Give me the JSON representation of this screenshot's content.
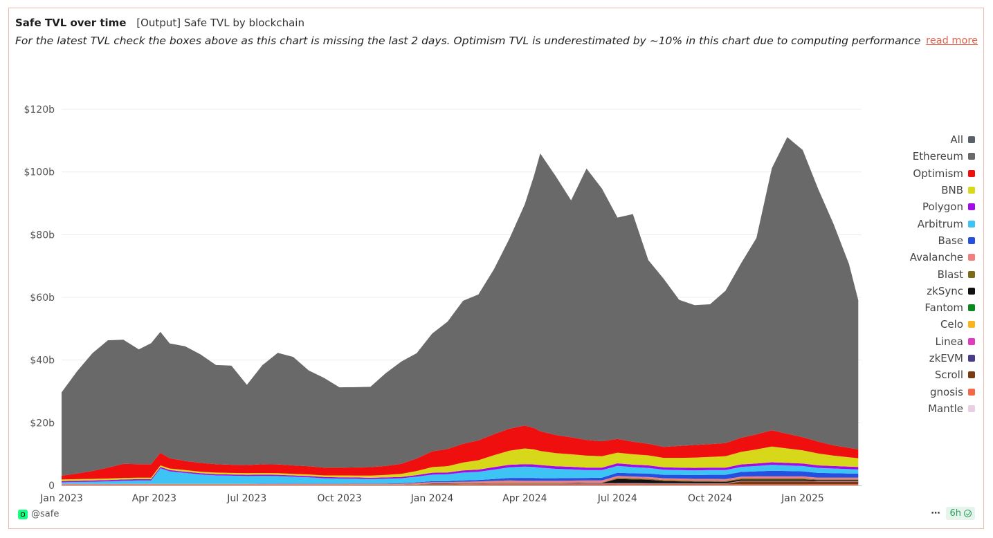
{
  "header": {
    "title": "Safe TVL over time",
    "subtitle": "[Output] Safe TVL by blockchain",
    "description": "For the latest TVL check the boxes above as this chart is missing the last 2 days. Optimism TVL is underestimated by ~10% in this chart due to computing performance is ...",
    "read_more": "read more"
  },
  "footer": {
    "owner": "@safe",
    "more_label": "⋯",
    "refresh_label": "6h"
  },
  "colors": {
    "accent": "#e4644a",
    "card_border": "#e9b9ae"
  },
  "chart_data": {
    "type": "area",
    "stacked": true,
    "title": "Safe TVL over time",
    "xlabel": "",
    "ylabel": "",
    "ylim": [
      0,
      135
    ],
    "y_unit": "billions USD",
    "y_ticks": [
      0,
      20,
      40,
      60,
      80,
      100,
      120
    ],
    "y_tick_labels": [
      "0",
      "$20b",
      "$40b",
      "$60b",
      "$80b",
      "$100b",
      "$120b"
    ],
    "x_ticks": [
      0,
      3,
      6,
      9,
      12,
      15,
      18,
      21,
      24
    ],
    "x_tick_labels": [
      "Jan 2023",
      "Apr 2023",
      "Jul 2023",
      "Oct 2023",
      "Jan 2024",
      "Apr 2024",
      "Jul 2024",
      "Oct 2024",
      "Jan 2025"
    ],
    "x_unit": "months since Jan 2023",
    "x": [
      0,
      0.5,
      1,
      1.5,
      2,
      2.5,
      2.9,
      3.2,
      3.5,
      4,
      4.5,
      5,
      5.5,
      6,
      6.5,
      7,
      7.5,
      8,
      8.5,
      9,
      9.5,
      10,
      10.5,
      11,
      11.5,
      12,
      12.5,
      13,
      13.5,
      14,
      14.5,
      15,
      15.3,
      15.5,
      16,
      16.5,
      17,
      17.5,
      18,
      18.5,
      19,
      19.5,
      20,
      20.5,
      21,
      21.5,
      22,
      22.5,
      23,
      23.5,
      24,
      24.5,
      25,
      25.5,
      25.8
    ],
    "series": [
      {
        "name": "Mantle",
        "color": "#e8cfe4",
        "values": [
          0,
          0,
          0,
          0,
          0,
          0,
          0,
          0,
          0,
          0,
          0,
          0,
          0,
          0,
          0,
          0,
          0,
          0,
          0,
          0,
          0,
          0,
          0,
          0,
          0,
          0,
          0,
          0,
          0,
          0,
          0,
          0,
          0,
          0,
          0,
          0,
          0,
          0,
          0.05,
          0.05,
          0.05,
          0.05,
          0.05,
          0.05,
          0.05,
          0.05,
          0.05,
          0.05,
          0.05,
          0.05,
          0.05,
          0.05,
          0.05,
          0.05,
          0.05
        ]
      },
      {
        "name": "gnosis",
        "color": "#f26b49",
        "values": [
          0.1,
          0.1,
          0.1,
          0.1,
          0.1,
          0.1,
          0.1,
          0.1,
          0.1,
          0.1,
          0.1,
          0.1,
          0.1,
          0.1,
          0.1,
          0.1,
          0.1,
          0.1,
          0.1,
          0.1,
          0.1,
          0.1,
          0.1,
          0.1,
          0.15,
          0.2,
          0.2,
          0.25,
          0.3,
          0.3,
          0.3,
          0.3,
          0.3,
          0.3,
          0.3,
          0.3,
          0.3,
          0.3,
          0.3,
          0.3,
          0.3,
          0.3,
          0.3,
          0.3,
          0.3,
          0.3,
          0.3,
          0.3,
          0.3,
          0.3,
          0.3,
          0.3,
          0.3,
          0.3,
          0.3
        ]
      },
      {
        "name": "Scroll",
        "color": "#7a3a10",
        "values": [
          0,
          0,
          0,
          0,
          0,
          0,
          0,
          0,
          0,
          0,
          0,
          0,
          0,
          0,
          0,
          0,
          0,
          0,
          0,
          0,
          0,
          0,
          0,
          0,
          0.05,
          0.1,
          0.1,
          0.1,
          0.1,
          0.1,
          0.1,
          0.1,
          0.1,
          0.1,
          0.1,
          0.1,
          0.1,
          0.1,
          0.1,
          0.1,
          0.1,
          0.1,
          0.1,
          0.1,
          0.1,
          0.1,
          0.9,
          0.9,
          0.9,
          0.9,
          0.9,
          0.8,
          0.8,
          0.8,
          0.8
        ]
      },
      {
        "name": "zkEVM",
        "color": "#4a3a8a",
        "values": [
          0,
          0,
          0,
          0,
          0,
          0,
          0,
          0,
          0,
          0,
          0,
          0,
          0,
          0,
          0,
          0,
          0,
          0,
          0,
          0,
          0.05,
          0.05,
          0.05,
          0.05,
          0.05,
          0.05,
          0.05,
          0.05,
          0.05,
          0.05,
          0.05,
          0.05,
          0.05,
          0.05,
          0.05,
          0.05,
          0.05,
          0.05,
          0.05,
          0.05,
          0.05,
          0.05,
          0.05,
          0.05,
          0.05,
          0.05,
          0.05,
          0.05,
          0.05,
          0.05,
          0.05,
          0.05,
          0.05,
          0.05,
          0.05
        ]
      },
      {
        "name": "Linea",
        "color": "#e03cc0",
        "values": [
          0,
          0,
          0,
          0,
          0,
          0,
          0,
          0,
          0,
          0,
          0,
          0,
          0,
          0,
          0,
          0,
          0,
          0,
          0,
          0,
          0,
          0,
          0,
          0,
          0,
          0,
          0,
          0,
          0,
          0.05,
          0.05,
          0.05,
          0.05,
          0.05,
          0.05,
          0.1,
          0.15,
          0.15,
          0.15,
          0.15,
          0.1,
          0.1,
          0.1,
          0.1,
          0.1,
          0.1,
          0.1,
          0.1,
          0.1,
          0.1,
          0.1,
          0.1,
          0.1,
          0.1,
          0.1
        ]
      },
      {
        "name": "Celo",
        "color": "#fbb51a",
        "values": [
          0.05,
          0.05,
          0.05,
          0.05,
          0.05,
          0.05,
          0.05,
          0.05,
          0.05,
          0.05,
          0.05,
          0.05,
          0.05,
          0.05,
          0.05,
          0.05,
          0.05,
          0.05,
          0.05,
          0.05,
          0.05,
          0.05,
          0.05,
          0.05,
          0.05,
          0.05,
          0.05,
          0.05,
          0.05,
          0.05,
          0.05,
          0.05,
          0.05,
          0.05,
          0.05,
          0.05,
          0.05,
          0.05,
          0.05,
          0.05,
          0.05,
          0.05,
          0.05,
          0.05,
          0.05,
          0.05,
          0.05,
          0.05,
          0.05,
          0.05,
          0.05,
          0.05,
          0.05,
          0.05,
          0.05
        ]
      },
      {
        "name": "Fantom",
        "color": "#0a8a1e",
        "values": [
          0.05,
          0.05,
          0.05,
          0.05,
          0.05,
          0.05,
          0.05,
          0.05,
          0.05,
          0.05,
          0.05,
          0.05,
          0.05,
          0.05,
          0.05,
          0.05,
          0.05,
          0.05,
          0.05,
          0.05,
          0.05,
          0.05,
          0.05,
          0.05,
          0.05,
          0.05,
          0.05,
          0.05,
          0.05,
          0.05,
          0.05,
          0.05,
          0.05,
          0.05,
          0.05,
          0.05,
          0.05,
          0.05,
          0.05,
          0.05,
          0.05,
          0.05,
          0.05,
          0.05,
          0.05,
          0.05,
          0.05,
          0.05,
          0.05,
          0.05,
          0.05,
          0.05,
          0.05,
          0.05,
          0.05
        ]
      },
      {
        "name": "zkSync",
        "color": "#111111",
        "values": [
          0,
          0,
          0,
          0,
          0,
          0,
          0,
          0,
          0,
          0,
          0,
          0,
          0,
          0,
          0,
          0,
          0,
          0,
          0,
          0,
          0,
          0,
          0,
          0,
          0.05,
          0.1,
          0.1,
          0.1,
          0.1,
          0.1,
          0.1,
          0.1,
          0.1,
          0.1,
          0.1,
          0.1,
          0.1,
          0.1,
          1.3,
          1.2,
          1.1,
          0.7,
          0.6,
          0.5,
          0.5,
          0.4,
          0.4,
          0.4,
          0.4,
          0.4,
          0.4,
          0.3,
          0.3,
          0.3,
          0.3
        ]
      },
      {
        "name": "Blast",
        "color": "#7a6a1a",
        "values": [
          0,
          0,
          0,
          0,
          0,
          0,
          0,
          0,
          0,
          0,
          0,
          0,
          0,
          0,
          0,
          0,
          0,
          0,
          0,
          0,
          0,
          0,
          0,
          0,
          0,
          0,
          0,
          0,
          0,
          0.05,
          0.1,
          0.1,
          0.1,
          0.1,
          0.1,
          0.1,
          0.1,
          0.1,
          0.3,
          0.3,
          0.3,
          0.3,
          0.3,
          0.3,
          0.3,
          0.3,
          0.3,
          0.3,
          0.3,
          0.3,
          0.3,
          0.2,
          0.2,
          0.2,
          0.2
        ]
      },
      {
        "name": "Avalanche",
        "color": "#f08080",
        "values": [
          0.3,
          0.3,
          0.3,
          0.3,
          0.3,
          0.3,
          0.3,
          0.3,
          0.3,
          0.3,
          0.3,
          0.3,
          0.3,
          0.3,
          0.3,
          0.3,
          0.3,
          0.3,
          0.3,
          0.3,
          0.3,
          0.3,
          0.3,
          0.3,
          0.4,
          0.5,
          0.5,
          0.6,
          0.6,
          0.7,
          0.8,
          0.7,
          0.7,
          0.7,
          0.7,
          0.7,
          0.7,
          0.7,
          0.7,
          0.6,
          0.6,
          0.6,
          0.6,
          0.6,
          0.6,
          0.6,
          0.6,
          0.7,
          0.7,
          0.7,
          0.7,
          0.6,
          0.6,
          0.6,
          0.6
        ]
      },
      {
        "name": "Base",
        "color": "#2450e0",
        "values": [
          0,
          0,
          0,
          0,
          0,
          0,
          0,
          0,
          0,
          0,
          0,
          0,
          0,
          0,
          0.05,
          0.1,
          0.1,
          0.1,
          0.1,
          0.1,
          0.1,
          0.1,
          0.1,
          0.15,
          0.2,
          0.3,
          0.3,
          0.4,
          0.5,
          0.6,
          0.8,
          0.9,
          0.9,
          0.8,
          0.8,
          0.8,
          0.8,
          0.9,
          1.0,
          1.0,
          1.1,
          1.1,
          1.2,
          1.2,
          1.3,
          1.4,
          1.5,
          1.6,
          1.8,
          1.7,
          1.6,
          1.5,
          1.4,
          1.3,
          1.3
        ]
      },
      {
        "name": "Arbitrum",
        "color": "#3ec3f5",
        "values": [
          0.5,
          0.6,
          0.7,
          0.8,
          1.0,
          1.1,
          1.1,
          5.0,
          4.0,
          3.5,
          3.0,
          2.7,
          2.6,
          2.5,
          2.5,
          2.4,
          2.2,
          2.0,
          1.7,
          1.6,
          1.5,
          1.4,
          1.5,
          1.6,
          1.8,
          2.1,
          2.2,
          2.5,
          2.6,
          3.0,
          3.4,
          3.6,
          3.5,
          3.4,
          3.0,
          2.8,
          2.5,
          2.4,
          2.2,
          2.0,
          1.8,
          1.6,
          1.5,
          1.5,
          1.5,
          1.5,
          1.6,
          1.7,
          1.9,
          1.8,
          1.7,
          1.6,
          1.5,
          1.4,
          1.3
        ]
      },
      {
        "name": "Polygon",
        "color": "#a30ce8",
        "values": [
          0.4,
          0.4,
          0.4,
          0.4,
          0.4,
          0.4,
          0.4,
          0.4,
          0.4,
          0.4,
          0.4,
          0.4,
          0.4,
          0.4,
          0.4,
          0.4,
          0.4,
          0.4,
          0.4,
          0.4,
          0.4,
          0.4,
          0.4,
          0.4,
          0.5,
          0.6,
          0.6,
          0.7,
          0.7,
          0.8,
          0.8,
          0.8,
          0.8,
          0.8,
          0.8,
          0.8,
          0.8,
          0.8,
          0.8,
          0.8,
          0.8,
          0.8,
          0.8,
          0.8,
          0.8,
          0.8,
          0.8,
          0.8,
          0.8,
          0.8,
          0.8,
          0.8,
          0.8,
          0.8,
          0.8
        ]
      },
      {
        "name": "BNB",
        "color": "#d8d81a",
        "values": [
          0.5,
          0.5,
          0.5,
          0.5,
          0.5,
          0.5,
          0.5,
          0.5,
          0.5,
          0.5,
          0.5,
          0.5,
          0.5,
          0.5,
          0.5,
          0.5,
          0.5,
          0.5,
          0.5,
          0.6,
          0.6,
          0.7,
          0.8,
          1.0,
          1.3,
          1.8,
          2.0,
          2.5,
          3.0,
          3.8,
          4.5,
          5.0,
          4.8,
          4.5,
          4.2,
          4.0,
          3.8,
          3.6,
          3.4,
          3.3,
          3.2,
          3.0,
          3.1,
          3.3,
          3.4,
          3.6,
          4.0,
          4.5,
          5.0,
          4.6,
          4.2,
          3.8,
          3.3,
          3.0,
          2.8
        ]
      },
      {
        "name": "Optimism",
        "color": "#f00f0f",
        "values": [
          1.2,
          1.8,
          2.5,
          3.5,
          4.5,
          4.3,
          4.3,
          4.0,
          3.3,
          2.9,
          2.8,
          2.7,
          2.6,
          2.6,
          2.8,
          2.8,
          2.7,
          2.6,
          2.5,
          2.5,
          2.6,
          2.7,
          2.9,
          3.2,
          4.0,
          5.0,
          5.5,
          6.0,
          6.3,
          6.7,
          7.0,
          7.3,
          6.8,
          6.3,
          5.8,
          5.4,
          5.0,
          4.8,
          4.4,
          4.0,
          3.7,
          3.5,
          3.8,
          4.0,
          4.1,
          4.2,
          4.5,
          4.8,
          5.2,
          4.7,
          4.2,
          3.8,
          3.3,
          3.0,
          2.8
        ]
      },
      {
        "name": "Ethereum",
        "color": "#696969",
        "values": [
          26.6,
          32.6,
          37.6,
          40.6,
          39.6,
          36.6,
          38.6,
          38.6,
          36.6,
          36.6,
          34.6,
          31.6,
          31.6,
          25.6,
          31.6,
          35.6,
          34.6,
          30.6,
          28.6,
          25.6,
          25.6,
          25.6,
          29.6,
          32.6,
          33.6,
          37.6,
          40.6,
          45.6,
          46.6,
          52.6,
          60.6,
          70.6,
          80.6,
          88.6,
          82.6,
          75.6,
          86.6,
          80.6,
          70.6,
          72.6,
          58.6,
          53.6,
          46.6,
          44.6,
          44.6,
          48.6,
          55.6,
          62.6,
          83.6,
          94.6,
          91.6,
          80.6,
          70.6,
          58.6,
          47.6
        ]
      }
    ],
    "total_all": [
      30,
      37,
      43,
      47,
      47,
      44,
      46,
      49,
      46,
      45,
      43,
      39,
      39,
      33,
      40,
      43,
      42,
      38,
      36,
      33,
      33,
      33,
      38,
      42,
      46,
      53,
      58,
      65,
      67,
      75,
      85,
      96,
      105,
      112,
      104,
      96,
      106,
      99,
      89,
      90,
      75,
      70,
      64,
      63,
      63,
      68,
      77,
      85,
      110,
      113,
      108,
      95,
      83,
      71,
      62
    ],
    "legend": [
      "All",
      "Ethereum",
      "Optimism",
      "BNB",
      "Polygon",
      "Arbitrum",
      "Base",
      "Avalanche",
      "Blast",
      "zkSync",
      "Fantom",
      "Celo",
      "Linea",
      "zkEVM",
      "Scroll",
      "gnosis",
      "Mantle"
    ],
    "legend_colors": [
      "#5a6068",
      "#696969",
      "#f00f0f",
      "#d8d81a",
      "#a30ce8",
      "#3ec3f5",
      "#2450e0",
      "#f08080",
      "#7a6a1a",
      "#111111",
      "#0a8a1e",
      "#fbb51a",
      "#e03cc0",
      "#4a3a8a",
      "#7a3a10",
      "#f26b49",
      "#e8cfe4"
    ],
    "legend_position": "right",
    "grid": true
  }
}
